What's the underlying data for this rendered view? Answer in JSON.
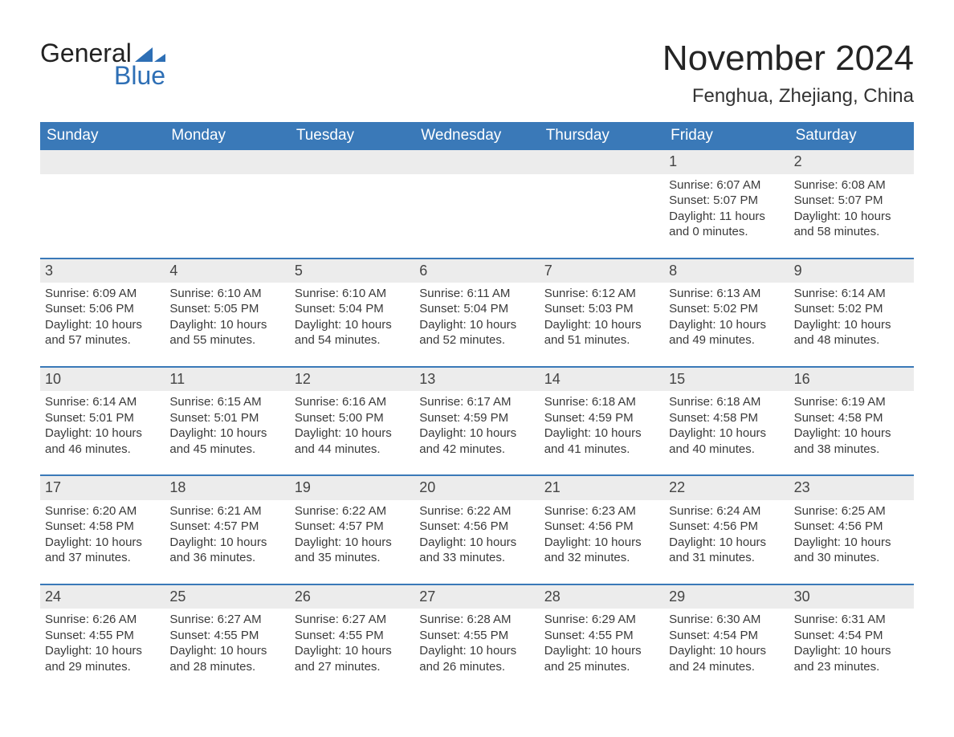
{
  "brand": {
    "line1": "General",
    "line2": "Blue",
    "icon_color": "#2e6fb5",
    "text1_color": "#222222",
    "text2_color": "#2e6fb5"
  },
  "title": "November 2024",
  "location": "Fenghua, Zhejiang, China",
  "colors": {
    "header_bg": "#3a79b8",
    "header_text": "#ffffff",
    "week_rule": "#3a79b8",
    "daynum_bg": "#ececec",
    "body_text": "#3a3a3a",
    "page_bg": "#ffffff"
  },
  "fonts": {
    "title_pt": 44,
    "location_pt": 24,
    "dayhead_pt": 19,
    "daynum_pt": 18,
    "body_pt": 15
  },
  "day_headers": [
    "Sunday",
    "Monday",
    "Tuesday",
    "Wednesday",
    "Thursday",
    "Friday",
    "Saturday"
  ],
  "labels": {
    "sunrise": "Sunrise",
    "sunset": "Sunset",
    "daylight": "Daylight"
  },
  "weeks": [
    [
      {
        "empty": true
      },
      {
        "empty": true
      },
      {
        "empty": true
      },
      {
        "empty": true
      },
      {
        "empty": true
      },
      {
        "day": 1,
        "sunrise": "6:07 AM",
        "sunset": "5:07 PM",
        "daylight": "11 hours and 0 minutes."
      },
      {
        "day": 2,
        "sunrise": "6:08 AM",
        "sunset": "5:07 PM",
        "daylight": "10 hours and 58 minutes."
      }
    ],
    [
      {
        "day": 3,
        "sunrise": "6:09 AM",
        "sunset": "5:06 PM",
        "daylight": "10 hours and 57 minutes."
      },
      {
        "day": 4,
        "sunrise": "6:10 AM",
        "sunset": "5:05 PM",
        "daylight": "10 hours and 55 minutes."
      },
      {
        "day": 5,
        "sunrise": "6:10 AM",
        "sunset": "5:04 PM",
        "daylight": "10 hours and 54 minutes."
      },
      {
        "day": 6,
        "sunrise": "6:11 AM",
        "sunset": "5:04 PM",
        "daylight": "10 hours and 52 minutes."
      },
      {
        "day": 7,
        "sunrise": "6:12 AM",
        "sunset": "5:03 PM",
        "daylight": "10 hours and 51 minutes."
      },
      {
        "day": 8,
        "sunrise": "6:13 AM",
        "sunset": "5:02 PM",
        "daylight": "10 hours and 49 minutes."
      },
      {
        "day": 9,
        "sunrise": "6:14 AM",
        "sunset": "5:02 PM",
        "daylight": "10 hours and 48 minutes."
      }
    ],
    [
      {
        "day": 10,
        "sunrise": "6:14 AM",
        "sunset": "5:01 PM",
        "daylight": "10 hours and 46 minutes."
      },
      {
        "day": 11,
        "sunrise": "6:15 AM",
        "sunset": "5:01 PM",
        "daylight": "10 hours and 45 minutes."
      },
      {
        "day": 12,
        "sunrise": "6:16 AM",
        "sunset": "5:00 PM",
        "daylight": "10 hours and 44 minutes."
      },
      {
        "day": 13,
        "sunrise": "6:17 AM",
        "sunset": "4:59 PM",
        "daylight": "10 hours and 42 minutes."
      },
      {
        "day": 14,
        "sunrise": "6:18 AM",
        "sunset": "4:59 PM",
        "daylight": "10 hours and 41 minutes."
      },
      {
        "day": 15,
        "sunrise": "6:18 AM",
        "sunset": "4:58 PM",
        "daylight": "10 hours and 40 minutes."
      },
      {
        "day": 16,
        "sunrise": "6:19 AM",
        "sunset": "4:58 PM",
        "daylight": "10 hours and 38 minutes."
      }
    ],
    [
      {
        "day": 17,
        "sunrise": "6:20 AM",
        "sunset": "4:58 PM",
        "daylight": "10 hours and 37 minutes."
      },
      {
        "day": 18,
        "sunrise": "6:21 AM",
        "sunset": "4:57 PM",
        "daylight": "10 hours and 36 minutes."
      },
      {
        "day": 19,
        "sunrise": "6:22 AM",
        "sunset": "4:57 PM",
        "daylight": "10 hours and 35 minutes."
      },
      {
        "day": 20,
        "sunrise": "6:22 AM",
        "sunset": "4:56 PM",
        "daylight": "10 hours and 33 minutes."
      },
      {
        "day": 21,
        "sunrise": "6:23 AM",
        "sunset": "4:56 PM",
        "daylight": "10 hours and 32 minutes."
      },
      {
        "day": 22,
        "sunrise": "6:24 AM",
        "sunset": "4:56 PM",
        "daylight": "10 hours and 31 minutes."
      },
      {
        "day": 23,
        "sunrise": "6:25 AM",
        "sunset": "4:56 PM",
        "daylight": "10 hours and 30 minutes."
      }
    ],
    [
      {
        "day": 24,
        "sunrise": "6:26 AM",
        "sunset": "4:55 PM",
        "daylight": "10 hours and 29 minutes."
      },
      {
        "day": 25,
        "sunrise": "6:27 AM",
        "sunset": "4:55 PM",
        "daylight": "10 hours and 28 minutes."
      },
      {
        "day": 26,
        "sunrise": "6:27 AM",
        "sunset": "4:55 PM",
        "daylight": "10 hours and 27 minutes."
      },
      {
        "day": 27,
        "sunrise": "6:28 AM",
        "sunset": "4:55 PM",
        "daylight": "10 hours and 26 minutes."
      },
      {
        "day": 28,
        "sunrise": "6:29 AM",
        "sunset": "4:55 PM",
        "daylight": "10 hours and 25 minutes."
      },
      {
        "day": 29,
        "sunrise": "6:30 AM",
        "sunset": "4:54 PM",
        "daylight": "10 hours and 24 minutes."
      },
      {
        "day": 30,
        "sunrise": "6:31 AM",
        "sunset": "4:54 PM",
        "daylight": "10 hours and 23 minutes."
      }
    ]
  ]
}
